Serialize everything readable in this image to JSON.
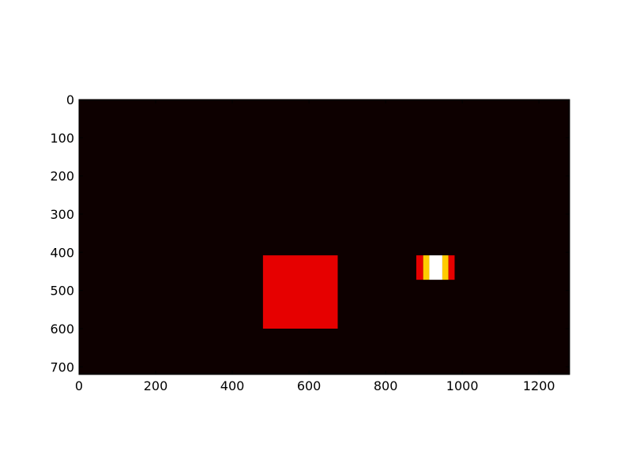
{
  "chart_data": {
    "type": "heatmap",
    "title": "",
    "xlabel": "",
    "ylabel": "",
    "xlim": [
      0,
      1280
    ],
    "ylim": [
      720,
      0
    ],
    "y_inverted": true,
    "x_ticks": [
      "0",
      "200",
      "400",
      "600",
      "800",
      "1000",
      "1200"
    ],
    "y_ticks": [
      "0",
      "100",
      "200",
      "300",
      "400",
      "500",
      "600",
      "700"
    ],
    "x_tick_values": [
      0,
      200,
      400,
      600,
      800,
      1000,
      1200
    ],
    "y_tick_values": [
      0,
      100,
      200,
      300,
      400,
      500,
      600,
      700
    ],
    "colormap": "hot",
    "background_color": "#0d0000",
    "grid": false,
    "regions": [
      {
        "name": "square",
        "x0": 480,
        "x1": 675,
        "y0": 408,
        "y1": 600,
        "color": "#e60000"
      },
      {
        "name": "stripe-1",
        "x0": 880,
        "x1": 898,
        "y0": 408,
        "y1": 472,
        "color": "#e60000"
      },
      {
        "name": "stripe-2",
        "x0": 898,
        "x1": 914,
        "y0": 408,
        "y1": 472,
        "color": "#ffcc00"
      },
      {
        "name": "stripe-3",
        "x0": 914,
        "x1": 948,
        "y0": 408,
        "y1": 472,
        "color": "#ffffff"
      },
      {
        "name": "stripe-4",
        "x0": 948,
        "x1": 964,
        "y0": 408,
        "y1": 472,
        "color": "#ffcc00"
      },
      {
        "name": "stripe-5",
        "x0": 964,
        "x1": 980,
        "y0": 408,
        "y1": 472,
        "color": "#e60000"
      }
    ]
  }
}
